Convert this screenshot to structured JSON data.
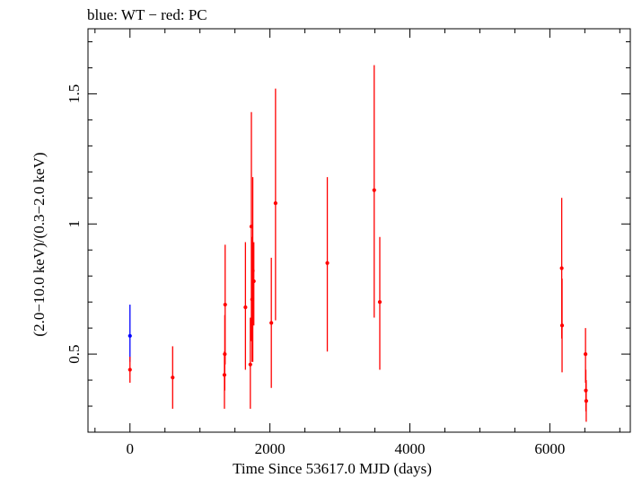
{
  "chart_data": {
    "type": "scatter",
    "title": "blue: WT − red: PC",
    "xlabel": "Time Since 53617.0 MJD (days)",
    "ylabel": "(2.0−10.0 keV)/(0.3−2.0 keV)",
    "xlim": [
      -600,
      7150
    ],
    "ylim": [
      0.2,
      1.75
    ],
    "xticks": [
      0,
      2000,
      4000,
      6000
    ],
    "xtick_labels": [
      "0",
      "2000",
      "4000",
      "6000"
    ],
    "yticks": [
      0.5,
      1,
      1.5
    ],
    "ytick_labels": [
      "0.5",
      "1",
      "1.5"
    ],
    "grid": false,
    "series": [
      {
        "color": "#0000ff",
        "points": [
          {
            "x": 0,
            "y": 0.57,
            "ylo": 0.47,
            "yhi": 0.69
          }
        ]
      },
      {
        "color": "#ff0000",
        "points": [
          {
            "x": 0,
            "y": 0.44,
            "ylo": 0.39,
            "yhi": 0.49
          },
          {
            "x": 610,
            "y": 0.41,
            "ylo": 0.29,
            "yhi": 0.53
          },
          {
            "x": 1350,
            "y": 0.42,
            "ylo": 0.29,
            "yhi": 0.51
          },
          {
            "x": 1355,
            "y": 0.5,
            "ylo": 0.36,
            "yhi": 0.65
          },
          {
            "x": 1360,
            "y": 0.69,
            "ylo": 0.46,
            "yhi": 0.92
          },
          {
            "x": 1650,
            "y": 0.68,
            "ylo": 0.44,
            "yhi": 0.93
          },
          {
            "x": 1720,
            "y": 0.46,
            "ylo": 0.29,
            "yhi": 0.64
          },
          {
            "x": 1735,
            "y": 0.99,
            "ylo": 0.55,
            "yhi": 1.43
          },
          {
            "x": 1745,
            "y": 0.71,
            "ylo": 0.47,
            "yhi": 0.95
          },
          {
            "x": 1755,
            "y": 0.82,
            "ylo": 0.47,
            "yhi": 1.18
          },
          {
            "x": 1770,
            "y": 0.78,
            "ylo": 0.61,
            "yhi": 0.93
          },
          {
            "x": 2020,
            "y": 0.62,
            "ylo": 0.37,
            "yhi": 0.87
          },
          {
            "x": 2080,
            "y": 1.08,
            "ylo": 0.63,
            "yhi": 1.52
          },
          {
            "x": 2820,
            "y": 0.85,
            "ylo": 0.51,
            "yhi": 1.18
          },
          {
            "x": 3490,
            "y": 1.13,
            "ylo": 0.64,
            "yhi": 1.61
          },
          {
            "x": 3570,
            "y": 0.7,
            "ylo": 0.44,
            "yhi": 0.95
          },
          {
            "x": 6170,
            "y": 0.83,
            "ylo": 0.56,
            "yhi": 1.1
          },
          {
            "x": 6175,
            "y": 0.61,
            "ylo": 0.43,
            "yhi": 0.79
          },
          {
            "x": 6510,
            "y": 0.5,
            "ylo": 0.39,
            "yhi": 0.6
          },
          {
            "x": 6515,
            "y": 0.36,
            "ylo": 0.28,
            "yhi": 0.44
          },
          {
            "x": 6520,
            "y": 0.32,
            "ylo": 0.24,
            "yhi": 0.4
          }
        ]
      }
    ]
  }
}
